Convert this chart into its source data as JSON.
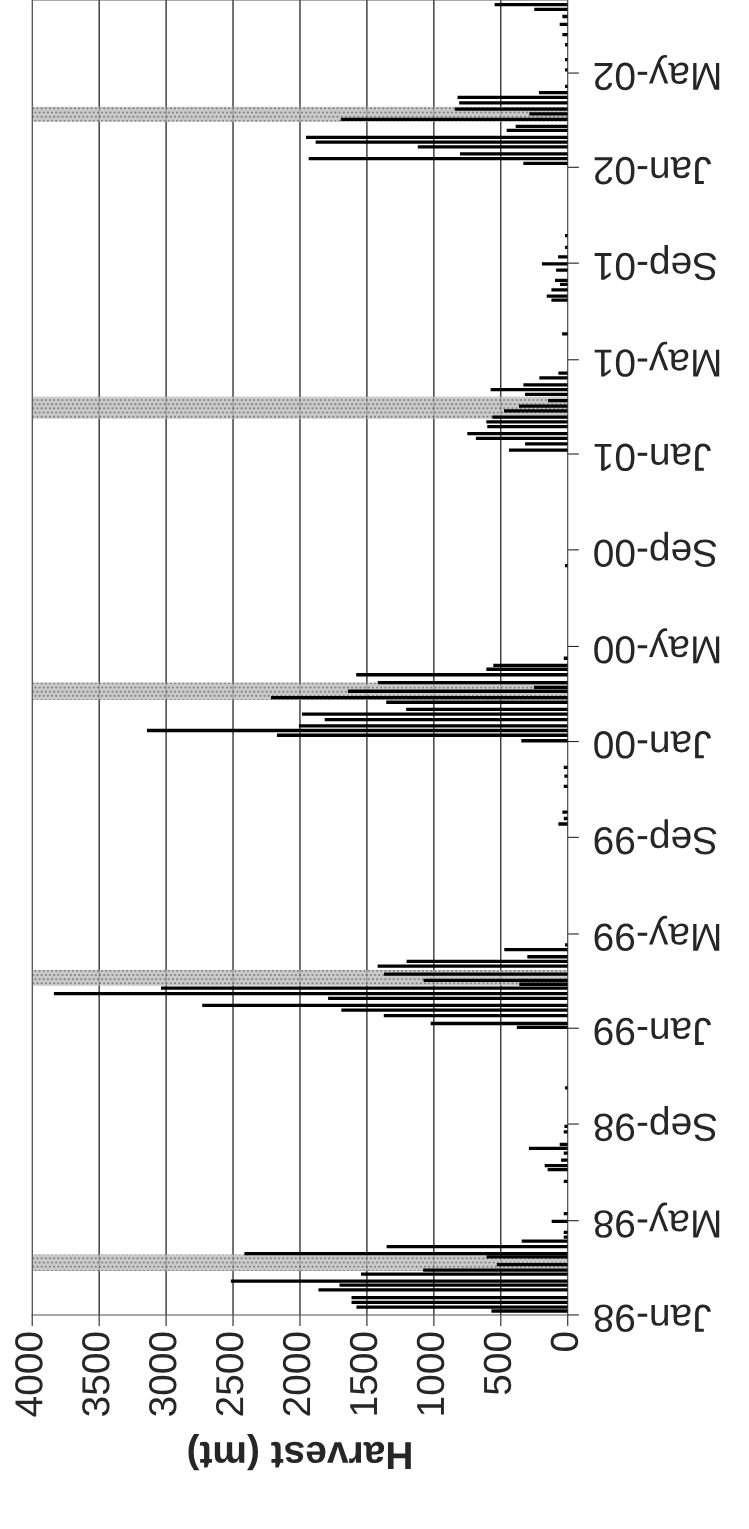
{
  "chart_data": {
    "type": "bar",
    "orientation": "horizontal",
    "xlabel": "Harvest (mt)",
    "xlim": [
      4000,
      0
    ],
    "xticks": [
      0,
      500,
      1000,
      1500,
      2000,
      2500,
      3000,
      3500,
      4000
    ],
    "ylim": [
      "1998-01-01",
      "2002-08-02"
    ],
    "yticks": [
      {
        "value": "1998-01-01",
        "label": "Jan-98"
      },
      {
        "value": "1998-05-01",
        "label": "May-98"
      },
      {
        "value": "1998-09-01",
        "label": "Sep-98"
      },
      {
        "value": "1999-01-01",
        "label": "Jan-99"
      },
      {
        "value": "1999-05-01",
        "label": "May-99"
      },
      {
        "value": "1999-09-01",
        "label": "Sep-99"
      },
      {
        "value": "2000-01-01",
        "label": "Jan-00"
      },
      {
        "value": "2000-05-01",
        "label": "May-00"
      },
      {
        "value": "2000-09-01",
        "label": "Sep-00"
      },
      {
        "value": "2001-01-01",
        "label": "Jan-01"
      },
      {
        "value": "2001-05-01",
        "label": "May-01"
      },
      {
        "value": "2001-09-01",
        "label": "Sep-01"
      },
      {
        "value": "2002-01-01",
        "label": "Jan-02"
      },
      {
        "value": "2002-05-01",
        "label": "May-02"
      }
    ],
    "grid": "x",
    "bands": [
      {
        "axis": "y",
        "from": "1998-02-26",
        "to": "1998-03-19",
        "color": "#bdbdbd"
      },
      {
        "axis": "y",
        "from": "1999-02-24",
        "to": "1999-03-16",
        "color": "#bdbdbd"
      },
      {
        "axis": "y",
        "from": "2000-02-23",
        "to": "2000-03-16",
        "color": "#bdbdbd"
      },
      {
        "axis": "y",
        "from": "2001-02-15",
        "to": "2001-03-15",
        "color": "#bdbdbd"
      },
      {
        "axis": "y",
        "from": "2002-02-28",
        "to": "2002-03-19",
        "color": "#bdbdbd"
      }
    ],
    "series": [
      {
        "color": "#000000",
        "x": [
          "1998-01-06",
          "1998-01-11",
          "1998-01-17",
          "1998-01-23",
          "1998-02-02",
          "1998-02-08",
          "1998-02-13",
          "1998-02-22",
          "1998-02-27",
          "1998-03-06",
          "1998-03-16",
          "1998-03-20",
          "1998-03-29",
          "1998-04-05",
          "1998-04-10",
          "1998-04-16",
          "1998-04-30",
          "1998-05-10",
          "1998-06-20",
          "1998-07-05",
          "1998-07-10",
          "1998-07-17",
          "1998-07-26",
          "1998-08-01",
          "1998-08-06",
          "1998-08-22",
          "1998-08-29",
          "1998-10-17",
          "1999-01-02",
          "1999-01-07",
          "1999-01-17",
          "1999-01-24",
          "1999-01-30",
          "1999-02-08",
          "1999-02-14",
          "1999-02-21",
          "1999-02-26",
          "1999-03-03",
          "1999-03-11",
          "1999-03-21",
          "1999-03-27",
          "1999-04-02",
          "1999-04-11",
          "1999-04-17",
          "1999-09-18",
          "1999-09-25",
          "1999-10-03",
          "1999-11-05",
          "1999-11-18",
          "1999-11-29",
          "2000-01-02",
          "2000-01-09",
          "2000-01-15",
          "2000-01-21",
          "2000-01-29",
          "2000-02-05",
          "2000-02-11",
          "2000-02-20",
          "2000-02-26",
          "2000-03-05",
          "2000-03-10",
          "2000-03-16",
          "2000-03-26",
          "2000-04-02",
          "2000-04-07",
          "2000-04-16",
          "2000-08-12",
          "2001-01-06",
          "2001-01-14",
          "2001-01-21",
          "2001-01-27",
          "2001-02-05",
          "2001-02-11",
          "2001-02-17",
          "2001-02-25",
          "2001-03-03",
          "2001-03-10",
          "2001-03-18",
          "2001-03-24",
          "2001-03-30",
          "2001-04-08",
          "2001-04-14",
          "2001-06-03",
          "2001-07-16",
          "2001-07-21",
          "2001-07-29",
          "2001-08-05",
          "2001-08-10",
          "2001-08-23",
          "2001-08-31",
          "2001-09-09",
          "2001-09-21",
          "2001-10-06",
          "2002-01-06",
          "2002-01-12",
          "2002-01-18",
          "2002-01-27",
          "2002-02-02",
          "2002-02-08",
          "2002-02-17",
          "2002-02-22",
          "2002-03-03",
          "2002-03-10",
          "2002-03-16",
          "2002-03-24",
          "2002-03-31",
          "2002-04-06",
          "2002-04-14",
          "2002-05-05",
          "2002-05-18",
          "2002-06-06",
          "2002-06-19",
          "2002-07-02",
          "2002-07-12",
          "2002-07-21",
          "2002-07-27"
        ],
        "values": [
          570,
          1578,
          1615,
          1615,
          1862,
          1705,
          2516,
          1544,
          1080,
          530,
          606,
          2415,
          1353,
          344,
          30,
          30,
          120,
          30,
          30,
          150,
          172,
          50,
          30,
          290,
          60,
          30,
          25,
          20,
          380,
          1024,
          1374,
          1691,
          2730,
          1790,
          3838,
          3038,
          362,
          1077,
          1372,
          1420,
          1204,
          302,
          474,
          20,
          70,
          30,
          40,
          30,
          25,
          30,
          347,
          2172,
          3143,
          2008,
          1815,
          1985,
          1207,
          1356,
          2216,
          1642,
          252,
          1419,
          1580,
          608,
          556,
          30,
          20,
          439,
          319,
          686,
          750,
          601,
          608,
          563,
          476,
          364,
          147,
          319,
          576,
          331,
          212,
          70,
          42,
          122,
          157,
          122,
          58,
          95,
          87,
          193,
          72,
          20,
          20,
          332,
          1935,
          805,
          1120,
          1883,
          1955,
          456,
          389,
          1695,
          287,
          843,
          811,
          823,
          215,
          20,
          20,
          20,
          20,
          40,
          60,
          40,
          250,
          546
        ]
      }
    ]
  }
}
